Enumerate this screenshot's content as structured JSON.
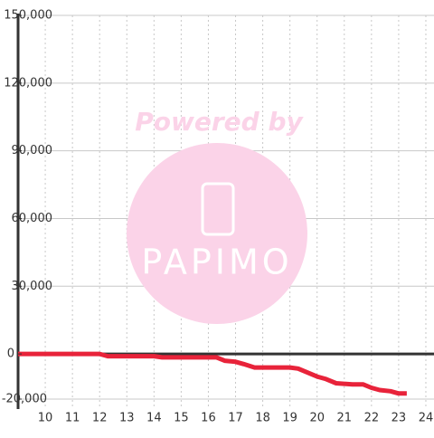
{
  "chart_data": {
    "type": "line",
    "watermark": {
      "text": "Powered by",
      "logo": "PAPIMO"
    },
    "x": [
      9,
      12,
      12.3,
      14,
      14.3,
      16.3,
      16.6,
      17,
      17.3,
      17.7,
      19,
      19.3,
      19.6,
      20,
      20.3,
      20.7,
      21.3,
      21.7,
      22,
      22.3,
      22.7,
      23,
      23.3
    ],
    "series": [
      {
        "color": "#e8233a",
        "values": [
          0,
          0,
          -1000,
          -1000,
          -1500,
          -1500,
          -3000,
          -3500,
          -4500,
          -6000,
          -6000,
          -6500,
          -8000,
          -10000,
          -11000,
          -13000,
          -13500,
          -13500,
          -15000,
          -16000,
          -16500,
          -17500,
          -17500
        ]
      }
    ],
    "xlim": [
      9,
      24.3
    ],
    "xticks": [
      10,
      11,
      12,
      13,
      14,
      15,
      16,
      17,
      18,
      19,
      20,
      21,
      22,
      23,
      24
    ],
    "ylim": [
      -20000,
      150000
    ],
    "yticks": [
      {
        "value": -20000,
        "label": "-20,000"
      },
      0,
      {
        "value": 30000,
        "label": "30,000"
      },
      {
        "value": 60000,
        "label": "60,000"
      },
      {
        "value": 90000,
        "label": "90,000"
      },
      {
        "value": 120000,
        "label": "120,000"
      },
      {
        "value": 150000,
        "label": "150,000"
      }
    ],
    "grid": true
  }
}
